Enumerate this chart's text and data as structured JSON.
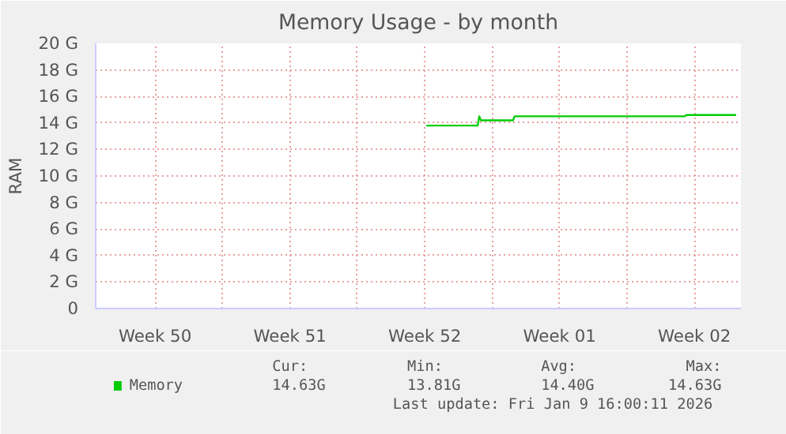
{
  "chart_data": {
    "type": "line",
    "title": "Memory Usage - by month",
    "ylabel": "RAM",
    "x": [
      "2025-12-24T14:00",
      "2025-12-27T06:00",
      "2025-12-27T08:00",
      "2025-12-27T10:00",
      "2025-12-29T02:00",
      "2025-12-29T04:00",
      "2026-01-07T00:00",
      "2026-01-07T02:00",
      "2026-01-09T16:00"
    ],
    "series": [
      {
        "name": "Memory",
        "color": "#00cc00",
        "values": [
          13.8,
          13.8,
          14.5,
          14.2,
          14.2,
          14.5,
          14.5,
          14.6,
          14.6
        ]
      }
    ],
    "xlim": [
      "2025-12-07T10:00",
      "2026-01-09T22:00"
    ],
    "xticks": [
      {
        "value": "2025-12-10T12:00",
        "label": "Week 50"
      },
      {
        "value": "2025-12-14",
        "label": null
      },
      {
        "value": "2025-12-17T12:00",
        "label": "Week 51"
      },
      {
        "value": "2025-12-21",
        "label": null
      },
      {
        "value": "2025-12-24T12:00",
        "label": "Week 52"
      },
      {
        "value": "2025-12-28",
        "label": null
      },
      {
        "value": "2025-12-31T12:00",
        "label": "Week 01"
      },
      {
        "value": "2026-01-04",
        "label": null
      },
      {
        "value": "2026-01-07T12:00",
        "label": "Week 02"
      }
    ],
    "ylim": [
      0,
      20
    ],
    "yticks": [
      0,
      {
        "value": 2,
        "label": "2 G"
      },
      {
        "value": 4,
        "label": "4 G"
      },
      {
        "value": 6,
        "label": "6 G"
      },
      {
        "value": 8,
        "label": "8 G"
      },
      {
        "value": 10,
        "label": "10 G"
      },
      {
        "value": 12,
        "label": "12 G"
      },
      {
        "value": 14,
        "label": "14 G"
      },
      {
        "value": 16,
        "label": "16 G"
      },
      {
        "value": 18,
        "label": "18 G"
      },
      {
        "value": 20,
        "label": "20 G"
      }
    ],
    "grid": true,
    "legend": "bottom",
    "marker": "none",
    "line_style": "solid",
    "annotations": [
      "Cur:",
      "14.63G",
      "Min:",
      "13.81G",
      "Avg:",
      "14.40G",
      "Max:",
      "14.63G",
      "Last update: Fri Jan  9 16:00:11 2026"
    ]
  }
}
